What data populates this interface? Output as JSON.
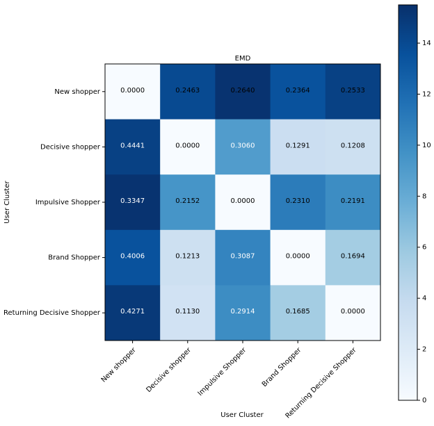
{
  "chart_data": {
    "type": "heatmap",
    "title": "EMD",
    "xlabel": "User Cluster",
    "ylabel": "User Cluster",
    "categories": [
      "New shopper",
      "Decisive shopper",
      "Impulsive Shopper",
      "Brand Shopper",
      "Returning Decisive Shopper"
    ],
    "values": [
      [
        0,
        14,
        15.3,
        13.5,
        14.5
      ],
      [
        14.5,
        0,
        9,
        3.5,
        3.3
      ],
      [
        15.3,
        9.5,
        0,
        11,
        10
      ],
      [
        13.5,
        3.3,
        10.5,
        0,
        5.5
      ],
      [
        15,
        3,
        10,
        5.5,
        0
      ]
    ],
    "annotations": [
      [
        "0.0000",
        "0.2463",
        "0.2640",
        "0.2364",
        "0.2533"
      ],
      [
        "0.4441",
        "0.0000",
        "0.3060",
        "0.1291",
        "0.1208"
      ],
      [
        "0.3347",
        "0.2152",
        "0.0000",
        "0.2310",
        "0.2191"
      ],
      [
        "0.4006",
        "0.1213",
        "0.3087",
        "0.0000",
        "0.1694"
      ],
      [
        "0.4271",
        "0.1130",
        "0.2914",
        "0.1685",
        "0.0000"
      ]
    ],
    "annotation_colors": [
      [
        "black",
        "black",
        "black",
        "black",
        "black"
      ],
      [
        "white",
        "black",
        "white",
        "black",
        "black"
      ],
      [
        "white",
        "black",
        "black",
        "black",
        "black"
      ],
      [
        "white",
        "black",
        "white",
        "black",
        "black"
      ],
      [
        "white",
        "black",
        "white",
        "black",
        "black"
      ]
    ],
    "colormap": [
      "#f7fbff",
      "#deebf7",
      "#c6dbef",
      "#9ecae1",
      "#6baed6",
      "#4292c6",
      "#2171b5",
      "#08519c",
      "#08306b"
    ],
    "clim": [
      0,
      15.5
    ],
    "colorbar_ticks": [
      0,
      2,
      4,
      6,
      8,
      10,
      12,
      14
    ]
  }
}
